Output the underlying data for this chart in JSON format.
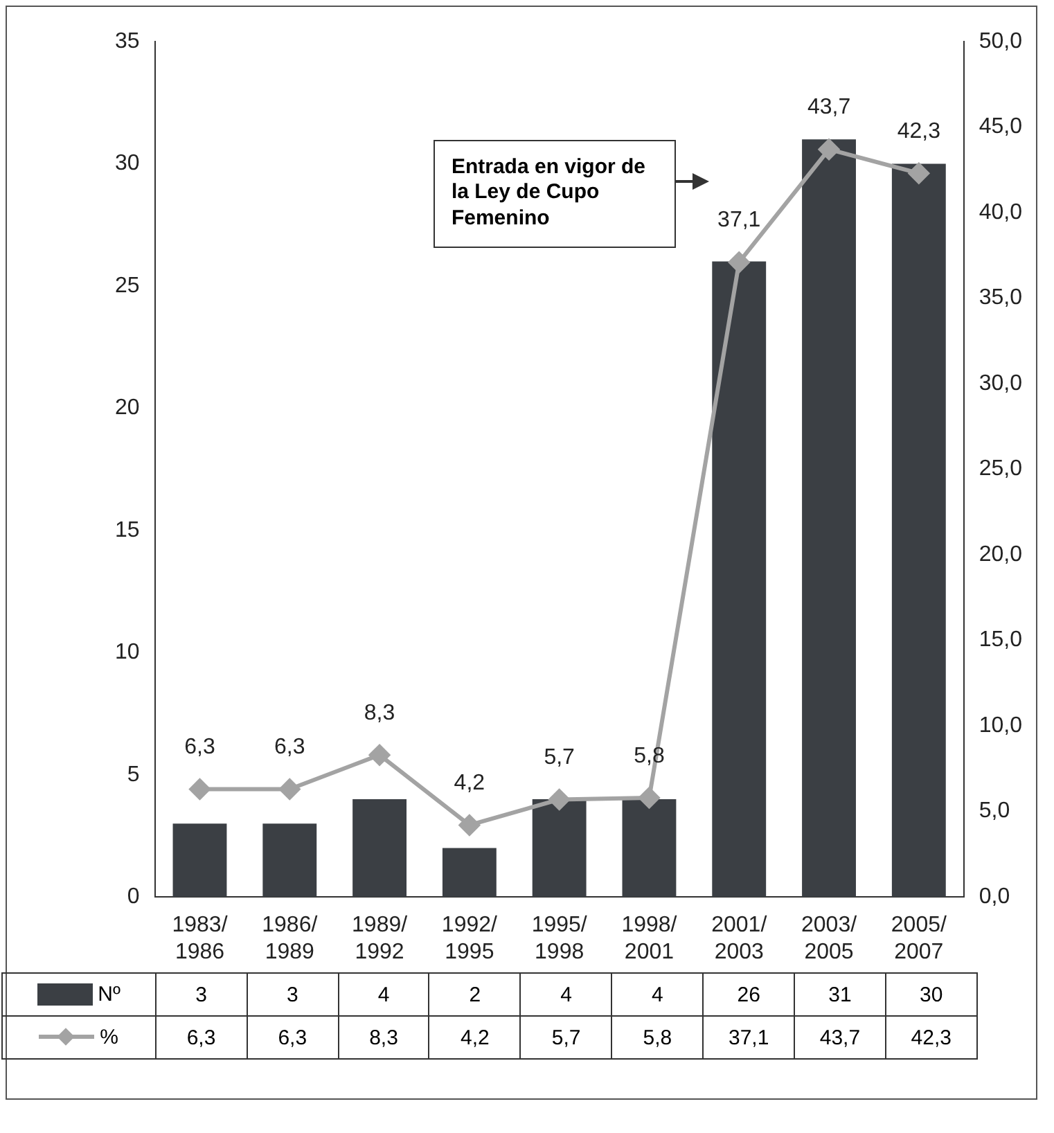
{
  "chart_data": {
    "type": "bar",
    "categories": [
      "1983/1986",
      "1986/1989",
      "1989/1992",
      "1992/1995",
      "1995/1998",
      "1998/2001",
      "2001/2003",
      "2003/2005",
      "2005/2007"
    ],
    "series": [
      {
        "name": "Nº",
        "color": "#3b3f44",
        "values": [
          3,
          3,
          4,
          2,
          4,
          4,
          26,
          31,
          30
        ],
        "value_labels": [
          "3",
          "3",
          "4",
          "2",
          "4",
          "4",
          "26",
          "31",
          "30"
        ]
      },
      {
        "name": "%",
        "type": "line",
        "axis": "y2",
        "color": "#a3a3a3",
        "values": [
          6.3,
          6.3,
          8.3,
          4.2,
          5.7,
          5.8,
          37.1,
          43.7,
          42.3
        ],
        "value_labels": [
          "6,3",
          "6,3",
          "8,3",
          "4,2",
          "5,7",
          "5,8",
          "37,1",
          "43,7",
          "42,3"
        ]
      }
    ],
    "ylim": [
      0,
      35
    ],
    "yticks": [
      0,
      5,
      10,
      15,
      20,
      25,
      30,
      35
    ],
    "y2lim": [
      0,
      50
    ],
    "y2ticks": [
      {
        "value": 0,
        "label": "0,0"
      },
      {
        "value": 5,
        "label": "5,0"
      },
      {
        "value": 10,
        "label": "10,0"
      },
      {
        "value": 15,
        "label": "15,0"
      },
      {
        "value": 20,
        "label": "20,0"
      },
      {
        "value": 25,
        "label": "25,0"
      },
      {
        "value": 30,
        "label": "30,0"
      },
      {
        "value": 35,
        "label": "35,0"
      },
      {
        "value": 40,
        "label": "40,0"
      },
      {
        "value": 45,
        "label": "45,0"
      },
      {
        "value": 50,
        "label": "50,0"
      }
    ],
    "marker": "diamond",
    "legend": "bottom",
    "annotations": [
      "Entrada en vigor de la Ley de Cupo Femenino"
    ]
  }
}
